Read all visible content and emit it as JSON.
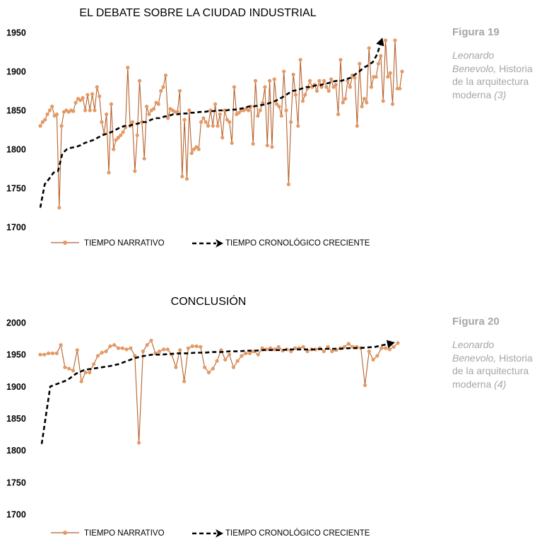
{
  "colors": {
    "narrative": "#b5612c",
    "marker": "#e49a66",
    "chrono": "#000000",
    "caption": "#a6a6a6"
  },
  "chart_data": [
    {
      "type": "line",
      "title": "EL DEBATE SOBRE LA CIUDAD INDUSTRIAL",
      "xlabel": "",
      "ylabel": "",
      "ylim": [
        1700,
        1950
      ],
      "yticks": [
        "1950",
        "1900",
        "1850",
        "1800",
        "1750",
        "1700"
      ],
      "grid": false,
      "legend_position": "bottom",
      "series": [
        {
          "name": "TIEMPO NARRATIVO",
          "style": "solid-with-markers",
          "values": [
            1830,
            1835,
            1838,
            1845,
            1850,
            1855,
            1843,
            1845,
            1725,
            1830,
            1848,
            1850,
            1848,
            1850,
            1849,
            1860,
            1865,
            1863,
            1866,
            1850,
            1870,
            1850,
            1871,
            1850,
            1880,
            1868,
            1835,
            1820,
            1845,
            1770,
            1858,
            1800,
            1812,
            1815,
            1818,
            1822,
            1828,
            1905,
            1830,
            1835,
            1772,
            1818,
            1888,
            1835,
            1788,
            1855,
            1845,
            1850,
            1852,
            1860,
            1858,
            1875,
            1880,
            1895,
            1840,
            1852,
            1850,
            1848,
            1848,
            1875,
            1765,
            1838,
            1762,
            1850,
            1795,
            1800,
            1803,
            1800,
            1835,
            1840,
            1835,
            1830,
            1850,
            1830,
            1858,
            1830,
            1845,
            1815,
            1850,
            1838,
            1835,
            1808,
            1880,
            1845,
            1847,
            1850,
            1850,
            1852,
            1850,
            1855,
            1807,
            1888,
            1843,
            1850,
            1860,
            1880,
            1805,
            1888,
            1803,
            1890,
            1858,
            1855,
            1843,
            1900,
            1850,
            1755,
            1835,
            1896,
            1870,
            1830,
            1915,
            1862,
            1870,
            1878,
            1888,
            1880,
            1883,
            1875,
            1888,
            1880,
            1888,
            1880,
            1875,
            1890,
            1880,
            1883,
            1845,
            1915,
            1860,
            1865,
            1888,
            1880,
            1895,
            1892,
            1830,
            1910,
            1855,
            1865,
            1860,
            1930,
            1880,
            1893,
            1893,
            1910,
            1920,
            1862,
            1940,
            1893,
            1898,
            1858,
            1940,
            1878,
            1878,
            1900
          ]
        },
        {
          "name": "TIEMPO CRONOLÓGICO CRECIENTE",
          "style": "dashed-arrow",
          "values": [
            1725,
            1755,
            1762,
            1770,
            1772,
            1795,
            1800,
            1802,
            1803,
            1805,
            1808,
            1810,
            1812,
            1815,
            1818,
            1820,
            1822,
            1825,
            1828,
            1830,
            1830,
            1832,
            1833,
            1835,
            1835,
            1838,
            1840,
            1840,
            1842,
            1843,
            1845,
            1845,
            1846,
            1846,
            1847,
            1847,
            1848,
            1848,
            1849,
            1849,
            1850,
            1850,
            1850,
            1851,
            1851,
            1852,
            1853,
            1855,
            1855,
            1856,
            1857,
            1858,
            1860,
            1862,
            1865,
            1868,
            1872,
            1875,
            1876,
            1878,
            1880,
            1880,
            1882,
            1882,
            1884,
            1885,
            1887,
            1888,
            1888,
            1890,
            1892,
            1896,
            1900,
            1905,
            1908,
            1912,
            1922,
            1940
          ]
        }
      ]
    },
    {
      "type": "line",
      "title": "CONCLUSIÓN",
      "xlabel": "",
      "ylabel": "",
      "ylim": [
        1700,
        2000
      ],
      "yticks": [
        "2000",
        "1950",
        "1900",
        "1850",
        "1800",
        "1750",
        "1700"
      ],
      "grid": false,
      "legend_position": "bottom",
      "series": [
        {
          "name": "TIEMPO NARRATIVO",
          "style": "solid-with-markers",
          "values": [
            1950,
            1950,
            1952,
            1952,
            1952,
            1965,
            1930,
            1928,
            1925,
            1957,
            1908,
            1922,
            1922,
            1935,
            1948,
            1953,
            1955,
            1963,
            1965,
            1960,
            1960,
            1958,
            1960,
            1948,
            1812,
            1955,
            1965,
            1972,
            1952,
            1955,
            1958,
            1958,
            1950,
            1930,
            1957,
            1908,
            1960,
            1963,
            1963,
            1962,
            1930,
            1922,
            1928,
            1940,
            1957,
            1942,
            1950,
            1930,
            1940,
            1948,
            1952,
            1952,
            1955,
            1950,
            1960,
            1958,
            1960,
            1958,
            1962,
            1956,
            1958,
            1955,
            1960,
            1960,
            1962,
            1955,
            1958,
            1958,
            1960,
            1955,
            1962,
            1955,
            1957,
            1960,
            1962,
            1967,
            1962,
            1962,
            1960,
            1902,
            1955,
            1942,
            1948,
            1960,
            1960,
            1958,
            1962,
            1968
          ]
        },
        {
          "name": "TIEMPO CRONOLÓGICO CRECIENTE",
          "style": "dashed-arrow",
          "values": [
            1810,
            1900,
            1905,
            1910,
            1920,
            1926,
            1928,
            1930,
            1932,
            1935,
            1940,
            1945,
            1948,
            1950,
            1950,
            1951,
            1952,
            1952,
            1953,
            1953,
            1954,
            1954,
            1955,
            1955,
            1956,
            1956,
            1957,
            1957,
            1957,
            1958,
            1958,
            1958,
            1958,
            1959,
            1959,
            1959,
            1960,
            1960,
            1961,
            1962,
            1965,
            1968
          ]
        }
      ]
    }
  ],
  "figure19": {
    "title": "Figura 19",
    "author": "Leonardo Benevolo,",
    "text": "Historia de la arquitectura moderna",
    "ref": "(3)"
  },
  "figure20": {
    "title": "Figura 20",
    "author": "Leonardo Benevolo,",
    "text": "Historia de la arquitectura moderna",
    "ref": "(4)"
  }
}
